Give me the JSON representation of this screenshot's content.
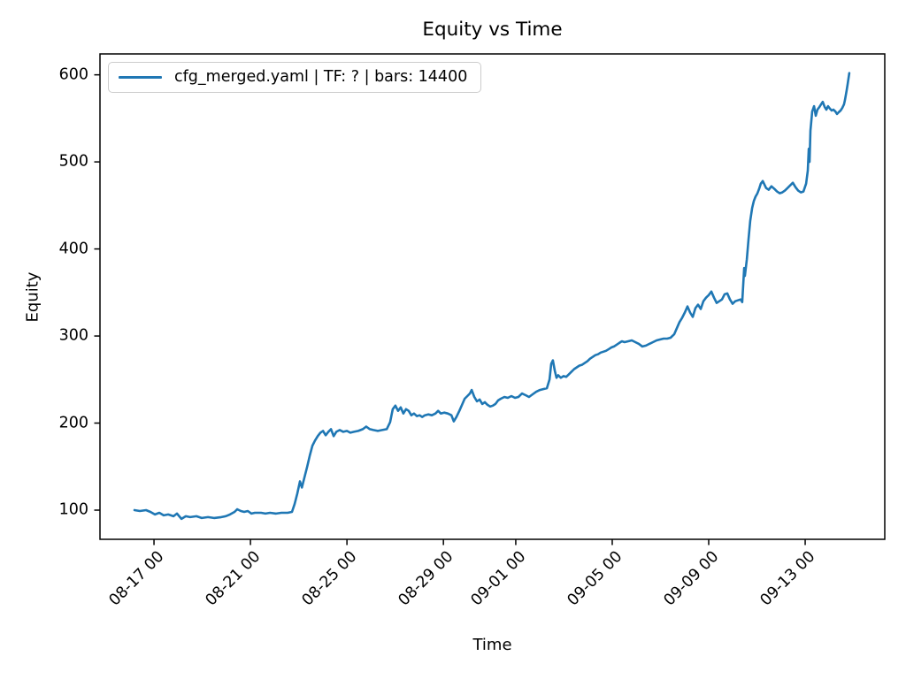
{
  "chart": {
    "title": "Equity vs Time",
    "xlabel": "Time",
    "ylabel": "Equity",
    "legend": {
      "label": "cfg_merged.yaml | TF: ? | bars: 14400"
    }
  },
  "chart_data": {
    "type": "line",
    "title": "Equity vs Time",
    "xlabel": "Time",
    "ylabel": "Equity",
    "grid": false,
    "legend_position": "upper left",
    "line_color": "#1f77b4",
    "frame_color": "#000000",
    "x_unit": "days since 08-16 00:00",
    "xlim": [
      -1.24,
      31.3
    ],
    "ylim": [
      66.5,
      624
    ],
    "y_ticks": [
      100,
      200,
      300,
      400,
      500,
      600
    ],
    "x_ticks": [
      {
        "pos": 1,
        "label": "08-17 00"
      },
      {
        "pos": 5,
        "label": "08-21 00"
      },
      {
        "pos": 9,
        "label": "08-25 00"
      },
      {
        "pos": 13,
        "label": "08-29 00"
      },
      {
        "pos": 16,
        "label": "09-01 00"
      },
      {
        "pos": 20,
        "label": "09-05 00"
      },
      {
        "pos": 24,
        "label": "09-09 00"
      },
      {
        "pos": 28,
        "label": "09-13 00"
      }
    ],
    "series": [
      {
        "name": "cfg_merged.yaml | TF: ? | bars: 14400",
        "points": [
          [
            0.19,
            100
          ],
          [
            0.41,
            99
          ],
          [
            0.67,
            100
          ],
          [
            0.85,
            98
          ],
          [
            1.04,
            95
          ],
          [
            1.22,
            97
          ],
          [
            1.4,
            94
          ],
          [
            1.59,
            95
          ],
          [
            1.81,
            93
          ],
          [
            1.95,
            96
          ],
          [
            2.14,
            90
          ],
          [
            2.32,
            93
          ],
          [
            2.5,
            92
          ],
          [
            2.76,
            93
          ],
          [
            2.98,
            91
          ],
          [
            3.24,
            92
          ],
          [
            3.49,
            91
          ],
          [
            3.79,
            92
          ],
          [
            3.97,
            93
          ],
          [
            4.15,
            95
          ],
          [
            4.34,
            98
          ],
          [
            4.45,
            101
          ],
          [
            4.6,
            99
          ],
          [
            4.74,
            98
          ],
          [
            4.89,
            99
          ],
          [
            5.04,
            96
          ],
          [
            5.18,
            97
          ],
          [
            5.44,
            97
          ],
          [
            5.62,
            96
          ],
          [
            5.81,
            97
          ],
          [
            6.06,
            96
          ],
          [
            6.28,
            97
          ],
          [
            6.54,
            97
          ],
          [
            6.72,
            98
          ],
          [
            6.83,
            107
          ],
          [
            6.94,
            119
          ],
          [
            7.05,
            133
          ],
          [
            7.13,
            126
          ],
          [
            7.24,
            138
          ],
          [
            7.35,
            150
          ],
          [
            7.46,
            163
          ],
          [
            7.57,
            174
          ],
          [
            7.68,
            180
          ],
          [
            7.79,
            185
          ],
          [
            7.9,
            189
          ],
          [
            8.01,
            191
          ],
          [
            8.12,
            186
          ],
          [
            8.23,
            190
          ],
          [
            8.34,
            193
          ],
          [
            8.45,
            185
          ],
          [
            8.56,
            190
          ],
          [
            8.7,
            192
          ],
          [
            8.85,
            190
          ],
          [
            9,
            191
          ],
          [
            9.14,
            189
          ],
          [
            9.29,
            190
          ],
          [
            9.47,
            191
          ],
          [
            9.66,
            193
          ],
          [
            9.8,
            196
          ],
          [
            9.95,
            193
          ],
          [
            10.1,
            192
          ],
          [
            10.28,
            191
          ],
          [
            10.46,
            192
          ],
          [
            10.65,
            193
          ],
          [
            10.79,
            201
          ],
          [
            10.9,
            216
          ],
          [
            11.01,
            220
          ],
          [
            11.12,
            214
          ],
          [
            11.23,
            218
          ],
          [
            11.34,
            211
          ],
          [
            11.45,
            216
          ],
          [
            11.56,
            214
          ],
          [
            11.67,
            209
          ],
          [
            11.78,
            211
          ],
          [
            11.9,
            208
          ],
          [
            12.01,
            209
          ],
          [
            12.12,
            207
          ],
          [
            12.23,
            209
          ],
          [
            12.37,
            210
          ],
          [
            12.52,
            209
          ],
          [
            12.67,
            211
          ],
          [
            12.78,
            214
          ],
          [
            12.89,
            211
          ],
          [
            13.03,
            212
          ],
          [
            13.18,
            211
          ],
          [
            13.33,
            209
          ],
          [
            13.43,
            202
          ],
          [
            13.54,
            207
          ],
          [
            13.66,
            214
          ],
          [
            13.77,
            221
          ],
          [
            13.88,
            228
          ],
          [
            13.99,
            231
          ],
          [
            14.1,
            234
          ],
          [
            14.17,
            238
          ],
          [
            14.28,
            230
          ],
          [
            14.39,
            225
          ],
          [
            14.5,
            227
          ],
          [
            14.61,
            222
          ],
          [
            14.72,
            224
          ],
          [
            14.83,
            221
          ],
          [
            14.94,
            219
          ],
          [
            15.05,
            220
          ],
          [
            15.16,
            222
          ],
          [
            15.27,
            226
          ],
          [
            15.38,
            228
          ],
          [
            15.53,
            230
          ],
          [
            15.67,
            229
          ],
          [
            15.82,
            231
          ],
          [
            15.97,
            229
          ],
          [
            16.11,
            230
          ],
          [
            16.26,
            234
          ],
          [
            16.41,
            232
          ],
          [
            16.55,
            230
          ],
          [
            16.7,
            233
          ],
          [
            16.85,
            236
          ],
          [
            17,
            238
          ],
          [
            17.14,
            239
          ],
          [
            17.29,
            240
          ],
          [
            17.4,
            250
          ],
          [
            17.47,
            268
          ],
          [
            17.54,
            272
          ],
          [
            17.62,
            260
          ],
          [
            17.69,
            252
          ],
          [
            17.76,
            255
          ],
          [
            17.87,
            252
          ],
          [
            17.98,
            254
          ],
          [
            18.09,
            253
          ],
          [
            18.2,
            256
          ],
          [
            18.31,
            259
          ],
          [
            18.42,
            262
          ],
          [
            18.53,
            264
          ],
          [
            18.64,
            266
          ],
          [
            18.75,
            267
          ],
          [
            18.86,
            269
          ],
          [
            18.97,
            271
          ],
          [
            19.08,
            274
          ],
          [
            19.19,
            276
          ],
          [
            19.3,
            278
          ],
          [
            19.41,
            279
          ],
          [
            19.52,
            281
          ],
          [
            19.63,
            282
          ],
          [
            19.74,
            283
          ],
          [
            19.86,
            285
          ],
          [
            19.97,
            287
          ],
          [
            20.07,
            288
          ],
          [
            20.18,
            290
          ],
          [
            20.29,
            292
          ],
          [
            20.4,
            294
          ],
          [
            20.51,
            293
          ],
          [
            20.66,
            294
          ],
          [
            20.81,
            295
          ],
          [
            20.96,
            293
          ],
          [
            21.1,
            291
          ],
          [
            21.25,
            288
          ],
          [
            21.4,
            289
          ],
          [
            21.54,
            291
          ],
          [
            21.69,
            293
          ],
          [
            21.84,
            295
          ],
          [
            21.98,
            296
          ],
          [
            22.13,
            297
          ],
          [
            22.28,
            297
          ],
          [
            22.42,
            298
          ],
          [
            22.57,
            302
          ],
          [
            22.68,
            309
          ],
          [
            22.79,
            316
          ],
          [
            22.9,
            321
          ],
          [
            23.01,
            327
          ],
          [
            23.12,
            334
          ],
          [
            23.23,
            327
          ],
          [
            23.34,
            322
          ],
          [
            23.45,
            332
          ],
          [
            23.56,
            336
          ],
          [
            23.67,
            331
          ],
          [
            23.78,
            340
          ],
          [
            23.89,
            344
          ],
          [
            24,
            347
          ],
          [
            24.11,
            351
          ],
          [
            24.22,
            344
          ],
          [
            24.33,
            338
          ],
          [
            24.44,
            340
          ],
          [
            24.55,
            342
          ],
          [
            24.66,
            348
          ],
          [
            24.77,
            349
          ],
          [
            24.88,
            342
          ],
          [
            24.99,
            337
          ],
          [
            25.1,
            340
          ],
          [
            25.21,
            341
          ],
          [
            25.32,
            342
          ],
          [
            25.39,
            339
          ],
          [
            25.47,
            378
          ],
          [
            25.5,
            369
          ],
          [
            25.58,
            388
          ],
          [
            25.65,
            411
          ],
          [
            25.72,
            432
          ],
          [
            25.8,
            447
          ],
          [
            25.87,
            455
          ],
          [
            25.94,
            460
          ],
          [
            26.02,
            464
          ],
          [
            26.09,
            469
          ],
          [
            26.16,
            475
          ],
          [
            26.24,
            478
          ],
          [
            26.38,
            470
          ],
          [
            26.49,
            468
          ],
          [
            26.6,
            472
          ],
          [
            26.72,
            469
          ],
          [
            26.83,
            466
          ],
          [
            26.94,
            464
          ],
          [
            27.05,
            465
          ],
          [
            27.16,
            467
          ],
          [
            27.27,
            470
          ],
          [
            27.38,
            473
          ],
          [
            27.49,
            476
          ],
          [
            27.6,
            471
          ],
          [
            27.71,
            467
          ],
          [
            27.82,
            465
          ],
          [
            27.93,
            466
          ],
          [
            28.04,
            475
          ],
          [
            28.11,
            490
          ],
          [
            28.15,
            515
          ],
          [
            28.18,
            500
          ],
          [
            28.22,
            536
          ],
          [
            28.29,
            558
          ],
          [
            28.37,
            564
          ],
          [
            28.44,
            553
          ],
          [
            28.51,
            560
          ],
          [
            28.59,
            563
          ],
          [
            28.66,
            566
          ],
          [
            28.73,
            569
          ],
          [
            28.81,
            563
          ],
          [
            28.88,
            560
          ],
          [
            28.95,
            564
          ],
          [
            29.03,
            561
          ],
          [
            29.1,
            559
          ],
          [
            29.17,
            560
          ],
          [
            29.25,
            558
          ],
          [
            29.32,
            555
          ],
          [
            29.39,
            557
          ],
          [
            29.47,
            559
          ],
          [
            29.54,
            562
          ],
          [
            29.61,
            566
          ],
          [
            29.65,
            571
          ],
          [
            29.72,
            582
          ],
          [
            29.76,
            589
          ],
          [
            29.83,
            602
          ]
        ]
      }
    ]
  }
}
